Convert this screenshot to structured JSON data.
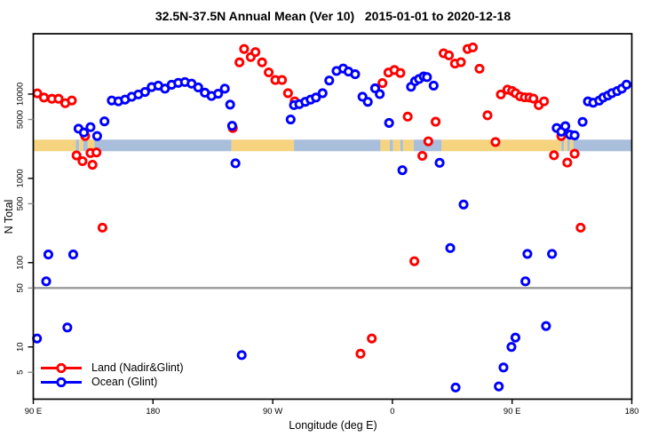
{
  "title": "32.5N-37.5N Annual Mean (Ver 10)   2015-01-01 to 2020-12-18",
  "chart_data": {
    "type": "scatter",
    "title": "32.5N-37.5N Annual Mean (Ver 10)   2015-01-01 to 2020-12-18",
    "xlabel": "Longitude (deg E)",
    "ylabel": "N Total",
    "grid": false,
    "legend_position": "bottom-left",
    "x_axis": {
      "range": [
        90,
        540
      ],
      "ticks": [
        {
          "lon": 90,
          "label": "90 E"
        },
        {
          "lon": 180,
          "label": "180"
        },
        {
          "lon": 270,
          "label": "90 W"
        },
        {
          "lon": 360,
          "label": "0"
        },
        {
          "lon": 450,
          "label": "90 E"
        },
        {
          "lon": 540,
          "label": "180"
        }
      ]
    },
    "y_axis": {
      "scale": "log",
      "range": [
        2.4,
        52000
      ],
      "ticks": [
        {
          "v": 10000,
          "label": "10000",
          "minor": false
        },
        {
          "v": 5000,
          "label": "5000",
          "minor": true
        },
        {
          "v": 1000,
          "label": "1000",
          "minor": false
        },
        {
          "v": 500,
          "label": "500",
          "minor": true
        },
        {
          "v": 100,
          "label": "100",
          "minor": false
        },
        {
          "v": 50,
          "label": "50",
          "minor": true
        },
        {
          "v": 10,
          "label": "10",
          "minor": false
        },
        {
          "v": 5,
          "label": "5",
          "minor": true
        }
      ]
    },
    "reference_line": {
      "value": 50,
      "color": "#999999"
    },
    "land_ocean_strip": {
      "description": "land/ocean map band for latitude zone 32.5N-37.5N",
      "ocean_color": "#a8bedb",
      "land_color": "#f6d47f",
      "value_top": 2880,
      "value_bottom": 2100,
      "segments": [
        {
          "from": 90,
          "to": 122,
          "type": "land"
        },
        {
          "from": 122,
          "to": 124.5,
          "type": "ocean"
        },
        {
          "from": 124.5,
          "to": 127.5,
          "type": "land"
        },
        {
          "from": 127.5,
          "to": 131,
          "type": "ocean"
        },
        {
          "from": 131,
          "to": 136,
          "type": "land"
        },
        {
          "from": 136,
          "to": 239,
          "type": "ocean"
        },
        {
          "from": 239,
          "to": 286,
          "type": "land"
        },
        {
          "from": 286,
          "to": 351,
          "type": "ocean"
        },
        {
          "from": 351,
          "to": 358,
          "type": "land"
        },
        {
          "from": 358,
          "to": 360.5,
          "type": "ocean"
        },
        {
          "from": 360.5,
          "to": 366,
          "type": "land"
        },
        {
          "from": 366,
          "to": 368,
          "type": "ocean"
        },
        {
          "from": 368,
          "to": 376,
          "type": "land"
        },
        {
          "from": 376,
          "to": 397,
          "type": "ocean"
        },
        {
          "from": 397,
          "to": 487,
          "type": "land"
        },
        {
          "from": 487,
          "to": 489,
          "type": "ocean"
        },
        {
          "from": 489,
          "to": 491.5,
          "type": "land"
        },
        {
          "from": 491.5,
          "to": 493.5,
          "type": "ocean"
        },
        {
          "from": 493.5,
          "to": 496,
          "type": "land"
        },
        {
          "from": 496,
          "to": 540,
          "type": "ocean"
        }
      ]
    },
    "series": [
      {
        "name": "Land (Nadir&Glint)",
        "color": "#ff0000",
        "points": [
          [
            93,
            10200
          ],
          [
            98,
            9100
          ],
          [
            104,
            8800
          ],
          [
            109,
            8800
          ],
          [
            114,
            7800
          ],
          [
            119,
            8400
          ],
          [
            122.5,
            1870
          ],
          [
            127,
            1600
          ],
          [
            129,
            3180
          ],
          [
            133,
            2000
          ],
          [
            134.5,
            1450
          ],
          [
            137.5,
            2030
          ],
          [
            142,
            260
          ],
          [
            240,
            3950
          ],
          [
            245,
            23800
          ],
          [
            248.5,
            34300
          ],
          [
            253.5,
            27500
          ],
          [
            257,
            31500
          ],
          [
            262,
            23800
          ],
          [
            267,
            18100
          ],
          [
            272,
            14700
          ],
          [
            277,
            14700
          ],
          [
            281.5,
            10250
          ],
          [
            286.5,
            8200
          ],
          [
            336,
            8.3
          ],
          [
            344.5,
            12.6
          ],
          [
            352.5,
            13500
          ],
          [
            357,
            18000
          ],
          [
            361.5,
            19300
          ],
          [
            366,
            17800
          ],
          [
            371.5,
            5400
          ],
          [
            376.5,
            104
          ],
          [
            382.5,
            1850
          ],
          [
            387,
            2750
          ],
          [
            392.5,
            4700
          ],
          [
            398.5,
            30500
          ],
          [
            402.5,
            28800
          ],
          [
            407,
            23000
          ],
          [
            411.5,
            23900
          ],
          [
            416.5,
            34300
          ],
          [
            420.5,
            35800
          ],
          [
            425.5,
            20000
          ],
          [
            431.5,
            5600
          ],
          [
            437.5,
            2700
          ],
          [
            441.5,
            9900
          ],
          [
            446.5,
            11300
          ],
          [
            450,
            10900
          ],
          [
            452.5,
            10250
          ],
          [
            456,
            9400
          ],
          [
            459.5,
            9150
          ],
          [
            463,
            9100
          ],
          [
            466,
            8850
          ],
          [
            470,
            7400
          ],
          [
            474,
            8200
          ],
          [
            481.5,
            1880
          ],
          [
            487,
            3180
          ],
          [
            491.5,
            1540
          ],
          [
            497,
            1960
          ],
          [
            501.5,
            260
          ]
        ]
      },
      {
        "name": "Ocean (Glint)",
        "color": "#0000ff",
        "points": [
          [
            92.8,
            12.6
          ],
          [
            99.7,
            60
          ],
          [
            101.3,
            125
          ],
          [
            115.6,
            17
          ],
          [
            120,
            125
          ],
          [
            124,
            3890
          ],
          [
            128,
            3500
          ],
          [
            133,
            4050
          ],
          [
            138,
            3180
          ],
          [
            143.5,
            4750
          ],
          [
            149,
            8400
          ],
          [
            154,
            8200
          ],
          [
            159,
            8600
          ],
          [
            164,
            9300
          ],
          [
            169,
            9900
          ],
          [
            174,
            10600
          ],
          [
            179,
            12100
          ],
          [
            184,
            12600
          ],
          [
            189,
            11600
          ],
          [
            194,
            12900
          ],
          [
            199,
            13600
          ],
          [
            204,
            13900
          ],
          [
            209,
            13300
          ],
          [
            214,
            12000
          ],
          [
            219,
            10400
          ],
          [
            224,
            9500
          ],
          [
            229,
            10100
          ],
          [
            234,
            11600
          ],
          [
            238,
            7500
          ],
          [
            239.5,
            4200
          ],
          [
            242,
            1510
          ],
          [
            246.7,
            8
          ],
          [
            283.5,
            5000
          ],
          [
            286,
            7400
          ],
          [
            290,
            7600
          ],
          [
            294.5,
            8100
          ],
          [
            298.5,
            8600
          ],
          [
            302.5,
            9100
          ],
          [
            307.5,
            10250
          ],
          [
            312.5,
            14500
          ],
          [
            318,
            18800
          ],
          [
            323,
            20100
          ],
          [
            327,
            18500
          ],
          [
            332,
            17200
          ],
          [
            337.5,
            9300
          ],
          [
            341.5,
            8100
          ],
          [
            347,
            11700
          ],
          [
            350.5,
            10000
          ],
          [
            357.5,
            4550
          ],
          [
            367.5,
            1250
          ],
          [
            374,
            12200
          ],
          [
            377,
            14200
          ],
          [
            380,
            15100
          ],
          [
            383.5,
            16200
          ],
          [
            386,
            15900
          ],
          [
            391,
            12600
          ],
          [
            395.5,
            1530
          ],
          [
            403.5,
            149
          ],
          [
            407.5,
            3.3
          ],
          [
            413.5,
            490
          ],
          [
            440,
            3.4
          ],
          [
            443.5,
            5.7
          ],
          [
            449.5,
            10
          ],
          [
            452.5,
            12.9
          ],
          [
            460,
            60
          ],
          [
            461.5,
            127
          ],
          [
            475.5,
            17.7
          ],
          [
            480,
            127
          ],
          [
            483.5,
            3960
          ],
          [
            487,
            3580
          ],
          [
            490,
            4160
          ],
          [
            493.5,
            3300
          ],
          [
            497,
            3240
          ],
          [
            503,
            4680
          ],
          [
            507,
            8180
          ],
          [
            511,
            7900
          ],
          [
            515.5,
            8370
          ],
          [
            518.5,
            9100
          ],
          [
            522,
            9600
          ],
          [
            525,
            10250
          ],
          [
            529,
            10850
          ],
          [
            532.5,
            11600
          ],
          [
            536,
            12950
          ]
        ]
      }
    ]
  }
}
